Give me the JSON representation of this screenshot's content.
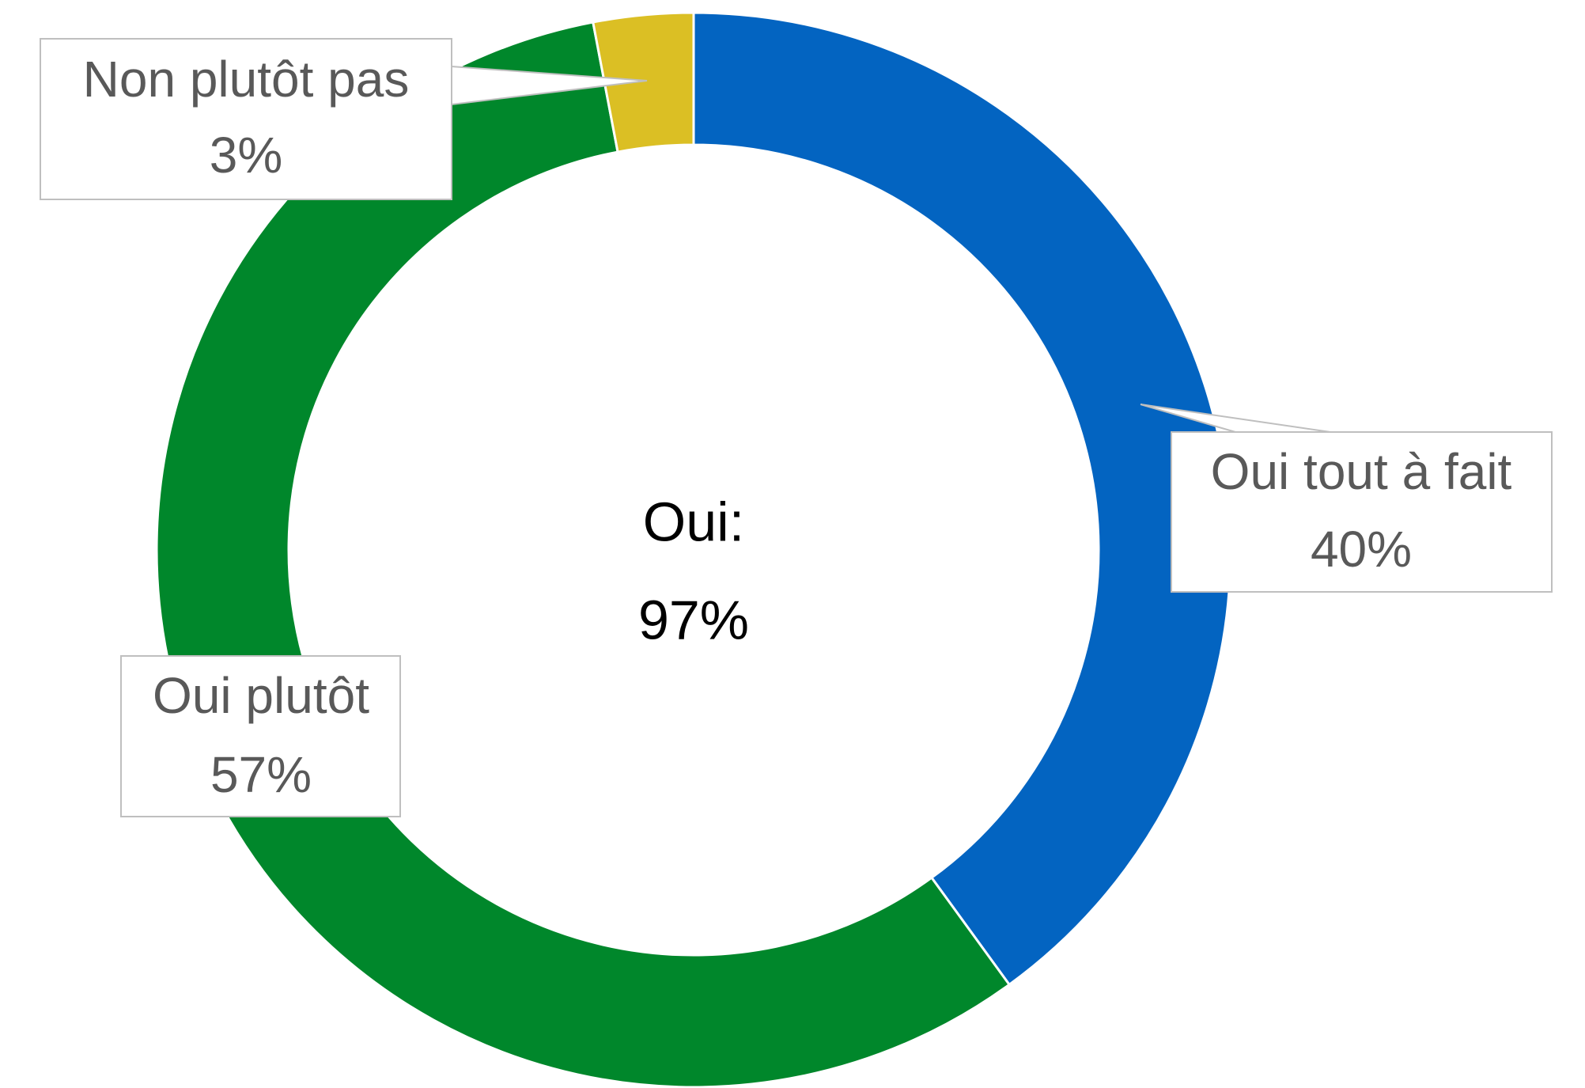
{
  "chart_data": {
    "type": "donut",
    "categories": [
      "Oui tout à fait",
      "Oui plutôt",
      "Non plutôt pas"
    ],
    "values": [
      40,
      57,
      3
    ],
    "value_labels": [
      "40%",
      "57%",
      "3%"
    ],
    "colors": [
      "#0364c1",
      "#00872b",
      "#dbbf24"
    ],
    "center_title": "Oui:",
    "center_value": "97%"
  }
}
